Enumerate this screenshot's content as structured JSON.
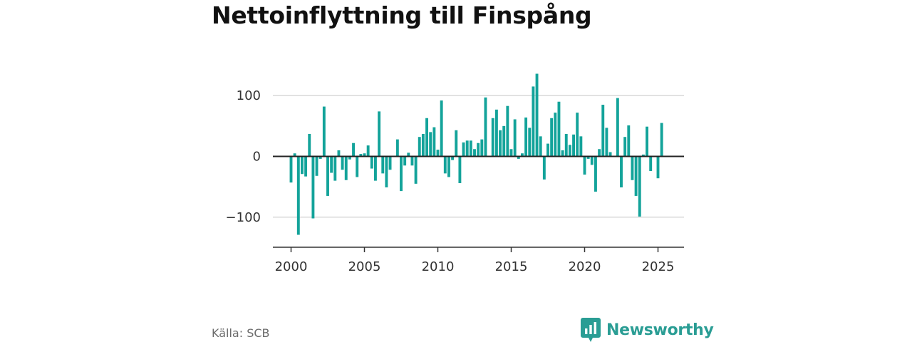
{
  "header": {
    "title": "Nettoinflyttning till Finspång"
  },
  "footer": {
    "source": "Källa: SCB",
    "brand": "Newsworthy"
  },
  "colors": {
    "bar": "#13a39a",
    "brand": "#2a9d94",
    "grid": "#d9d9d9",
    "zero_line": "#222222"
  },
  "chart_data": {
    "type": "bar",
    "frequency": "quarterly",
    "title": "Nettoinflyttning till Finspång",
    "xlabel": "",
    "ylabel": "",
    "ylim": [
      -150,
      150
    ],
    "yticks": [
      -100,
      0,
      100
    ],
    "ytick_labels": [
      "−100",
      "0",
      "100"
    ],
    "xticks": [
      2000,
      2005,
      2010,
      2015,
      2020,
      2025
    ],
    "xlim": [
      1999.5,
      2027.5
    ],
    "grid": true,
    "legend": "none",
    "series": [
      {
        "values": [
          {
            "x": "2000-Q1",
            "y": -43
          },
          {
            "x": "2000-Q2",
            "y": 5
          },
          {
            "x": "2000-Q3",
            "y": -129
          },
          {
            "x": "2000-Q4",
            "y": -29
          },
          {
            "x": "2001-Q1",
            "y": -33
          },
          {
            "x": "2001-Q2",
            "y": 37
          },
          {
            "x": "2001-Q3",
            "y": -102
          },
          {
            "x": "2001-Q4",
            "y": -32
          },
          {
            "x": "2002-Q1",
            "y": -4
          },
          {
            "x": "2002-Q2",
            "y": 82
          },
          {
            "x": "2002-Q3",
            "y": -65
          },
          {
            "x": "2002-Q4",
            "y": -27
          },
          {
            "x": "2003-Q1",
            "y": -40
          },
          {
            "x": "2003-Q2",
            "y": 10
          },
          {
            "x": "2003-Q3",
            "y": -22
          },
          {
            "x": "2003-Q4",
            "y": -39
          },
          {
            "x": "2004-Q1",
            "y": -5
          },
          {
            "x": "2004-Q2",
            "y": 22
          },
          {
            "x": "2004-Q3",
            "y": -34
          },
          {
            "x": "2004-Q4",
            "y": 4
          },
          {
            "x": "2005-Q1",
            "y": 5
          },
          {
            "x": "2005-Q2",
            "y": 18
          },
          {
            "x": "2005-Q3",
            "y": -20
          },
          {
            "x": "2005-Q4",
            "y": -40
          },
          {
            "x": "2006-Q1",
            "y": 74
          },
          {
            "x": "2006-Q2",
            "y": -28
          },
          {
            "x": "2006-Q3",
            "y": -51
          },
          {
            "x": "2006-Q4",
            "y": -22
          },
          {
            "x": "2007-Q1",
            "y": 0
          },
          {
            "x": "2007-Q2",
            "y": 28
          },
          {
            "x": "2007-Q3",
            "y": -57
          },
          {
            "x": "2007-Q4",
            "y": -15
          },
          {
            "x": "2008-Q1",
            "y": 6
          },
          {
            "x": "2008-Q2",
            "y": -15
          },
          {
            "x": "2008-Q3",
            "y": -45
          },
          {
            "x": "2008-Q4",
            "y": 32
          },
          {
            "x": "2009-Q1",
            "y": 37
          },
          {
            "x": "2009-Q2",
            "y": 63
          },
          {
            "x": "2009-Q3",
            "y": 40
          },
          {
            "x": "2009-Q4",
            "y": 48
          },
          {
            "x": "2010-Q1",
            "y": 11
          },
          {
            "x": "2010-Q2",
            "y": 92
          },
          {
            "x": "2010-Q3",
            "y": -28
          },
          {
            "x": "2010-Q4",
            "y": -34
          },
          {
            "x": "2011-Q1",
            "y": -6
          },
          {
            "x": "2011-Q2",
            "y": 43
          },
          {
            "x": "2011-Q3",
            "y": -44
          },
          {
            "x": "2011-Q4",
            "y": 23
          },
          {
            "x": "2012-Q1",
            "y": 26
          },
          {
            "x": "2012-Q2",
            "y": 26
          },
          {
            "x": "2012-Q3",
            "y": 12
          },
          {
            "x": "2012-Q4",
            "y": 22
          },
          {
            "x": "2013-Q1",
            "y": 28
          },
          {
            "x": "2013-Q2",
            "y": 97
          },
          {
            "x": "2013-Q3",
            "y": 1
          },
          {
            "x": "2013-Q4",
            "y": 63
          },
          {
            "x": "2014-Q1",
            "y": 77
          },
          {
            "x": "2014-Q2",
            "y": 43
          },
          {
            "x": "2014-Q3",
            "y": 50
          },
          {
            "x": "2014-Q4",
            "y": 83
          },
          {
            "x": "2015-Q1",
            "y": 12
          },
          {
            "x": "2015-Q2",
            "y": 61
          },
          {
            "x": "2015-Q3",
            "y": -4
          },
          {
            "x": "2015-Q4",
            "y": 5
          },
          {
            "x": "2016-Q1",
            "y": 64
          },
          {
            "x": "2016-Q2",
            "y": 47
          },
          {
            "x": "2016-Q3",
            "y": 115
          },
          {
            "x": "2016-Q4",
            "y": 136
          },
          {
            "x": "2017-Q1",
            "y": 33
          },
          {
            "x": "2017-Q2",
            "y": -38
          },
          {
            "x": "2017-Q3",
            "y": 21
          },
          {
            "x": "2017-Q4",
            "y": 63
          },
          {
            "x": "2018-Q1",
            "y": 72
          },
          {
            "x": "2018-Q2",
            "y": 90
          },
          {
            "x": "2018-Q3",
            "y": 10
          },
          {
            "x": "2018-Q4",
            "y": 37
          },
          {
            "x": "2019-Q1",
            "y": 19
          },
          {
            "x": "2019-Q2",
            "y": 36
          },
          {
            "x": "2019-Q3",
            "y": 72
          },
          {
            "x": "2019-Q4",
            "y": 33
          },
          {
            "x": "2020-Q1",
            "y": -30
          },
          {
            "x": "2020-Q2",
            "y": -4
          },
          {
            "x": "2020-Q3",
            "y": -14
          },
          {
            "x": "2020-Q4",
            "y": -58
          },
          {
            "x": "2021-Q1",
            "y": 12
          },
          {
            "x": "2021-Q2",
            "y": 85
          },
          {
            "x": "2021-Q3",
            "y": 47
          },
          {
            "x": "2021-Q4",
            "y": 7
          },
          {
            "x": "2022-Q1",
            "y": 0
          },
          {
            "x": "2022-Q2",
            "y": 96
          },
          {
            "x": "2022-Q3",
            "y": -51
          },
          {
            "x": "2022-Q4",
            "y": 32
          },
          {
            "x": "2023-Q1",
            "y": 51
          },
          {
            "x": "2023-Q2",
            "y": -39
          },
          {
            "x": "2023-Q3",
            "y": -65
          },
          {
            "x": "2023-Q4",
            "y": -99
          },
          {
            "x": "2024-Q1",
            "y": 3
          },
          {
            "x": "2024-Q2",
            "y": 49
          },
          {
            "x": "2024-Q3",
            "y": -24
          },
          {
            "x": "2024-Q4",
            "y": 0
          },
          {
            "x": "2025-Q1",
            "y": -36
          },
          {
            "x": "2025-Q2",
            "y": 55
          }
        ]
      }
    ]
  }
}
